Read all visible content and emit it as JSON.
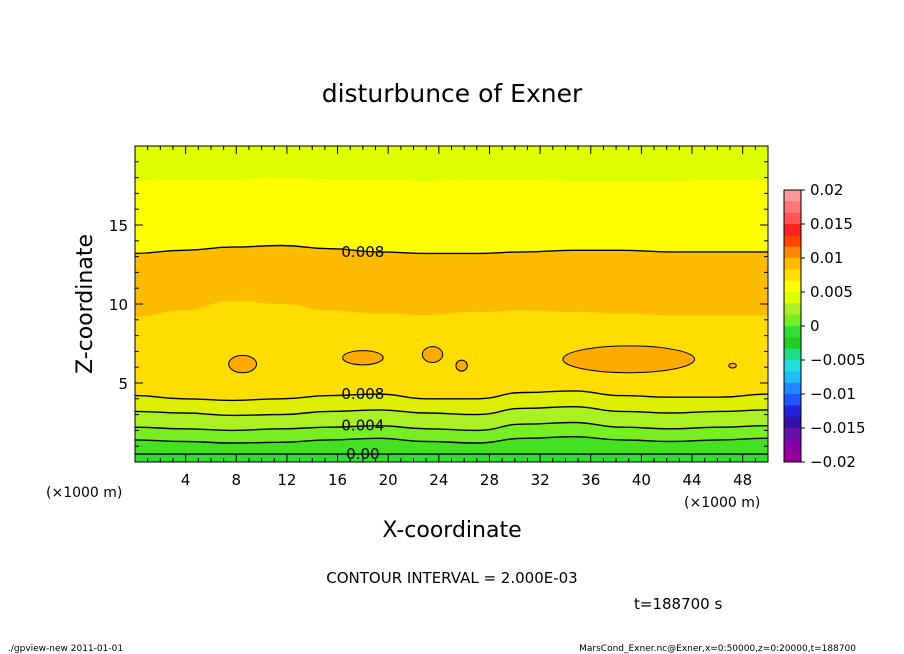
{
  "chart_data": {
    "type": "heatmap",
    "title": "disturbunce of Exner",
    "xlabel": "X-coordinate",
    "ylabel": "Z-coordinate",
    "x_unit_left": "(×1000 m)",
    "x_unit_right": "(×1000 m)",
    "xlim": [
      0,
      50
    ],
    "ylim": [
      0,
      20
    ],
    "x_ticks": [
      4,
      8,
      12,
      16,
      20,
      24,
      28,
      32,
      36,
      40,
      44,
      48
    ],
    "y_ticks": [
      5,
      10,
      15
    ],
    "contour_interval_text": "CONTOUR INTERVAL = 2.000E-03",
    "time_text": "t=188700 s",
    "contour_lines": [
      {
        "level": 0.0,
        "label": "0.00",
        "z": [
          0.5,
          0.5,
          0.5,
          0.5,
          0.5,
          0.5,
          0.5,
          0.5,
          0.5,
          0.5,
          0.5,
          0.5,
          0.5,
          0.5
        ]
      },
      {
        "level": 0.002,
        "label": "",
        "z": [
          1.4,
          1.3,
          1.2,
          1.25,
          1.4,
          1.5,
          1.3,
          1.2,
          1.5,
          1.6,
          1.4,
          1.3,
          1.4,
          1.5
        ]
      },
      {
        "level": 0.004,
        "label": "0.004",
        "z": [
          2.2,
          2.1,
          2.0,
          2.1,
          2.2,
          2.3,
          2.1,
          2.0,
          2.4,
          2.5,
          2.2,
          2.1,
          2.2,
          2.3
        ]
      },
      {
        "level": 0.006,
        "label": "",
        "z": [
          3.2,
          3.1,
          2.95,
          3.0,
          3.2,
          3.3,
          3.1,
          3.0,
          3.4,
          3.5,
          3.2,
          3.1,
          3.2,
          3.3
        ]
      },
      {
        "level": 0.008,
        "label": "0.008",
        "z": [
          4.2,
          4.0,
          3.9,
          4.0,
          4.2,
          4.3,
          4.0,
          4.0,
          4.4,
          4.5,
          4.2,
          4.1,
          4.1,
          4.3
        ]
      },
      {
        "level": 0.008,
        "label": "0.008",
        "z": [
          13.2,
          13.4,
          13.6,
          13.7,
          13.5,
          13.3,
          13.2,
          13.2,
          13.3,
          13.4,
          13.4,
          13.3,
          13.3,
          13.3
        ]
      }
    ],
    "fill_bands": [
      {
        "z_top": [
          0.5,
          0.5,
          0.5,
          0.5,
          0.5,
          0.5,
          0.5,
          0.5,
          0.5,
          0.5,
          0.5,
          0.5,
          0.5,
          0.5
        ],
        "color": "#33dd33"
      },
      {
        "z_top": [
          1.4,
          1.3,
          1.2,
          1.25,
          1.4,
          1.5,
          1.3,
          1.2,
          1.5,
          1.6,
          1.4,
          1.3,
          1.4,
          1.5
        ],
        "color": "#44e022"
      },
      {
        "z_top": [
          2.2,
          2.1,
          2.0,
          2.1,
          2.2,
          2.3,
          2.1,
          2.0,
          2.4,
          2.5,
          2.2,
          2.1,
          2.2,
          2.3
        ],
        "color": "#77ee22"
      },
      {
        "z_top": [
          3.2,
          3.1,
          2.95,
          3.0,
          3.2,
          3.3,
          3.1,
          3.0,
          3.4,
          3.5,
          3.2,
          3.1,
          3.2,
          3.3
        ],
        "color": "#aaf022"
      },
      {
        "z_top": [
          4.2,
          4.0,
          3.9,
          4.0,
          4.2,
          4.3,
          4.0,
          4.0,
          4.4,
          4.5,
          4.2,
          4.1,
          4.1,
          4.3
        ],
        "color": "#ddf000"
      },
      {
        "z_top": [
          9.2,
          9.6,
          10.2,
          10.0,
          9.6,
          9.4,
          9.3,
          9.5,
          9.6,
          9.5,
          9.4,
          9.3,
          9.3,
          9.3
        ],
        "color": "#ffdd00"
      },
      {
        "z_top": [
          13.2,
          13.4,
          13.6,
          13.7,
          13.5,
          13.3,
          13.2,
          13.2,
          13.3,
          13.4,
          13.4,
          13.3,
          13.3,
          13.3
        ],
        "color": "#ffbb00"
      },
      {
        "z_top": [
          17.8,
          17.9,
          17.9,
          18.0,
          17.9,
          17.9,
          17.8,
          17.9,
          17.9,
          17.8,
          17.8,
          17.8,
          17.9,
          17.9
        ],
        "color": "#ffff00"
      },
      {
        "z_top": [
          20,
          20,
          20,
          20,
          20,
          20,
          20,
          20,
          20,
          20,
          20,
          20,
          20,
          20
        ],
        "color": "#ddff00"
      }
    ],
    "blobs": [
      {
        "x": 8.5,
        "z": 6.2,
        "rx": 1.1,
        "rz": 0.55
      },
      {
        "x": 18.0,
        "z": 6.6,
        "rx": 1.6,
        "rz": 0.45
      },
      {
        "x": 23.5,
        "z": 6.8,
        "rx": 0.8,
        "rz": 0.5
      },
      {
        "x": 25.8,
        "z": 6.1,
        "rx": 0.45,
        "rz": 0.35
      },
      {
        "x": 39.0,
        "z": 6.5,
        "rx": 5.2,
        "rz": 0.85
      },
      {
        "x": 47.2,
        "z": 6.1,
        "rx": 0.3,
        "rz": 0.15
      }
    ],
    "colorbar": {
      "labels": [
        "0.02",
        "0.015",
        "0.01",
        "0.005",
        "0",
        "−0.005",
        "−0.01",
        "−0.015",
        "−0.02"
      ],
      "colors": [
        "#ff9999",
        "#ff7777",
        "#ff5555",
        "#ff2222",
        "#ff4400",
        "#ff8800",
        "#ffbb00",
        "#ffdd00",
        "#ffff00",
        "#ddff00",
        "#aaf022",
        "#77ee22",
        "#33dd33",
        "#22cc22",
        "#22dd88",
        "#22dddd",
        "#22bbff",
        "#2288ff",
        "#2255ff",
        "#2222dd",
        "#3311aa",
        "#6611aa",
        "#8800aa",
        "#990099"
      ]
    }
  },
  "footer": {
    "left": "./gpview-new   2011-01-01",
    "right": "MarsCond_Exner.nc@Exner,x=0:50000,z=0:20000,t=188700"
  }
}
